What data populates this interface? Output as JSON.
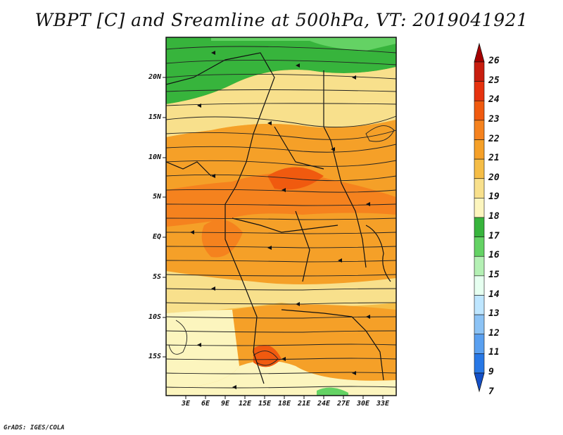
{
  "title": "WBPT [C] and Sreamline at 500hPa, VT: 2019041921",
  "footer": "GrADS: IGES/COLA",
  "map": {
    "lat_labels": [
      "20N",
      "15N",
      "10N",
      "5N",
      "EQ",
      "5S",
      "10S",
      "15S"
    ],
    "lon_labels": [
      "3E",
      "6E",
      "9E",
      "12E",
      "15E",
      "18E",
      "21E",
      "24E",
      "27E",
      "30E",
      "33E"
    ],
    "field_icon": "streamline-arrow-icon"
  },
  "colorbar": {
    "labels": [
      "26",
      "25",
      "24",
      "23",
      "22",
      "21",
      "20",
      "19",
      "18",
      "17",
      "16",
      "15",
      "14",
      "13",
      "12",
      "11",
      "9",
      "7"
    ],
    "colors": [
      "#a50000",
      "#c81e0f",
      "#e6320f",
      "#f05a0f",
      "#f5821e",
      "#f5a028",
      "#f5bd46",
      "#f8e08c",
      "#fcf5be",
      "#37b43c",
      "#64d264",
      "#b4f0b4",
      "#e6fff0",
      "#bee6ff",
      "#8cc3f5",
      "#5aa0f0",
      "#2878e6",
      "#1450c8"
    ]
  }
}
